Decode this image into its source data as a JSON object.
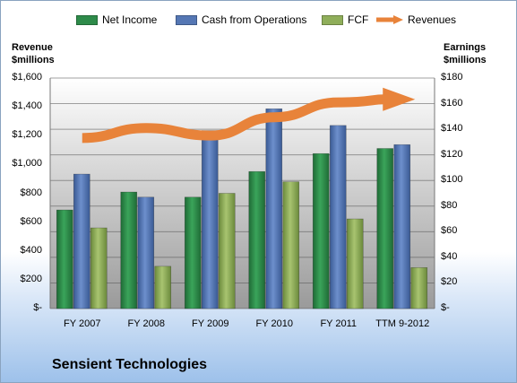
{
  "legend": {
    "net_income": "Net Income",
    "cash_ops": "Cash from Operations",
    "fcf": "FCF",
    "revenues": "Revenues"
  },
  "left_axis_title": [
    "Revenue",
    "$millions"
  ],
  "right_axis_title": [
    "Earnings",
    "$millions"
  ],
  "company": "Sensient Technologies",
  "colors": {
    "net_income": "#2e8b4a",
    "cash_ops": "#5577b4",
    "fcf": "#8fae5a",
    "revenues": "#e8833a"
  },
  "chart_data": {
    "type": "bar",
    "categories": [
      "FY 2007",
      "FY 2008",
      "FY 2009",
      "FY 2010",
      "FY 2011",
      "TTM 9-2012"
    ],
    "series": [
      {
        "name": "Net Income",
        "axis": "right",
        "values": [
          77,
          91,
          87,
          107,
          121,
          125
        ]
      },
      {
        "name": "Cash from Operations",
        "axis": "right",
        "values": [
          105,
          87,
          139,
          156,
          143,
          128
        ]
      },
      {
        "name": "FCF",
        "axis": "right",
        "values": [
          63,
          33,
          90,
          99,
          70,
          32
        ]
      },
      {
        "name": "Revenues",
        "axis": "left",
        "type": "line",
        "values": [
          1184,
          1253,
          1201,
          1328,
          1431,
          1452
        ]
      }
    ],
    "left_ticks": [
      "$-",
      "$200",
      "$400",
      "$600",
      "$800",
      "$1,000",
      "$1,200",
      "$1,400",
      "$1,600"
    ],
    "right_ticks": [
      "$-",
      "$20",
      "$40",
      "$60",
      "$80",
      "$100",
      "$120",
      "$140",
      "$160",
      "$180"
    ],
    "ylim_left": [
      0,
      1600
    ],
    "ylim_right": [
      0,
      180
    ],
    "grid": true,
    "legend_position": "top"
  }
}
